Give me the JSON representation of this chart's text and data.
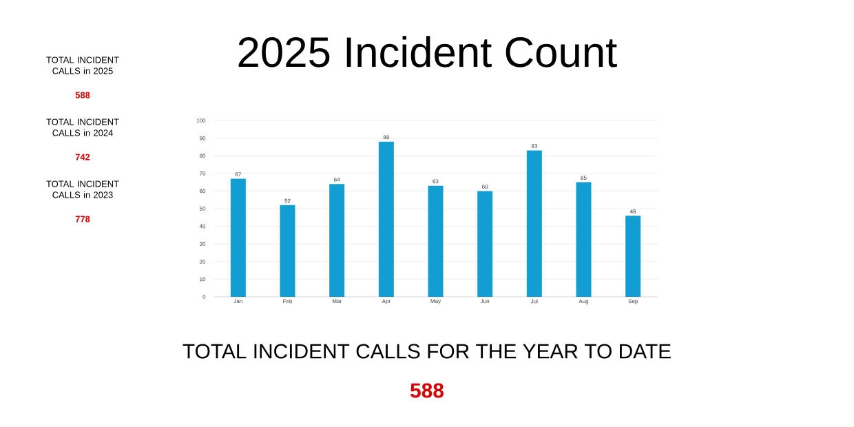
{
  "chart_data": {
    "type": "bar",
    "title": "2025 Incident Count",
    "categories": [
      "Jan",
      "Feb",
      "Mar",
      "Apr",
      "May",
      "Jun",
      "Jul",
      "Aug",
      "Sep"
    ],
    "values": [
      67,
      52,
      64,
      88,
      63,
      60,
      83,
      65,
      46
    ],
    "color": "#139ed3",
    "ylim": [
      0,
      100
    ],
    "yticks": [
      0,
      10,
      20,
      30,
      40,
      50,
      60,
      70,
      80,
      90,
      100
    ],
    "grid": "y",
    "data_labels": true,
    "annotations": [
      "TOTAL INCIDENT CALLS in 2025",
      "588",
      "TOTAL INCIDENT CALLS in 2024",
      "742",
      "TOTAL INCIDENT CALLS in 2023",
      "778",
      "TOTAL INCIDENT CALLS FOR THE YEAR TO DATE",
      "588"
    ]
  }
}
